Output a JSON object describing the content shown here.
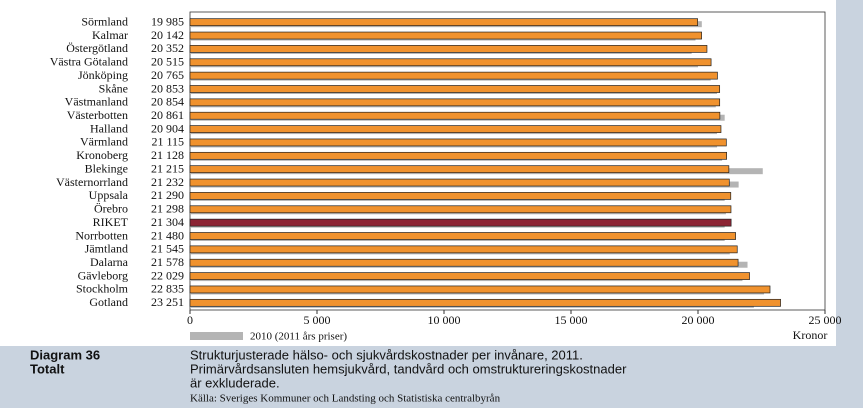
{
  "chart_data": {
    "type": "hbar",
    "categories": [
      "Sörmland",
      "Kalmar",
      "Östergötland",
      "Västra Götaland",
      "Jönköping",
      "Skåne",
      "Västmanland",
      "Västerbotten",
      "Halland",
      "Värmland",
      "Kronoberg",
      "Blekinge",
      "Västernorrland",
      "Uppsala",
      "Örebro",
      "RIKET",
      "Norrbotten",
      "Jämtland",
      "Dalarna",
      "Gävleborg",
      "Stockholm",
      "Gotland"
    ],
    "series": [
      {
        "colors": [
          "#f0922e",
          "#f0922e",
          "#f0922e",
          "#f0922e",
          "#f0922e",
          "#f0922e",
          "#f0922e",
          "#f0922e",
          "#f0922e",
          "#f0922e",
          "#f0922e",
          "#f0922e",
          "#f0922e",
          "#f0922e",
          "#f0922e",
          "#8c2434",
          "#f0922e",
          "#f0922e",
          "#f0922e",
          "#f0922e",
          "#f0922e",
          "#f0922e"
        ],
        "values": [
          19985,
          20142,
          20352,
          20515,
          20765,
          20853,
          20854,
          20861,
          20904,
          21115,
          21128,
          21215,
          21232,
          21290,
          21298,
          21304,
          21480,
          21545,
          21578,
          22029,
          22835,
          23251
        ],
        "value_labels": [
          "19 985",
          "20 142",
          "20 352",
          "20 515",
          "20 765",
          "20 853",
          "20 854",
          "20 861",
          "20 904",
          "21 115",
          "21 128",
          "21 215",
          "21 232",
          "21 290",
          "21 298",
          "21 304",
          "21 480",
          "21 545",
          "21 578",
          "22 029",
          "22 835",
          "23 251"
        ]
      },
      {
        "name": "2010 (2011 års priser)",
        "color": "#b4b4b4",
        "values": [
          20150,
          19900,
          19750,
          20000,
          20500,
          20750,
          20700,
          21050,
          20750,
          20750,
          20950,
          22550,
          21600,
          21050,
          21100,
          21050,
          21050,
          21250,
          21950,
          21750,
          22600,
          22200
        ]
      }
    ],
    "xlabel": "Kronor",
    "xlim": [
      0,
      25000
    ],
    "xticks": [
      0,
      {
        "value": 5000,
        "label": "5 000"
      },
      {
        "value": 10000,
        "label": "10 000"
      },
      {
        "value": 15000,
        "label": "15 000"
      },
      {
        "value": 20000,
        "label": "20 000"
      },
      {
        "value": 25000,
        "label": "25 000"
      }
    ],
    "grid": false
  },
  "caption": {
    "number": "Diagram 36",
    "subtitle": "Totalt",
    "lines": [
      "Strukturjusterade hälso- och sjukvårdskostnader per invånare, 2011.",
      "Primärvårdsansluten hemsjukvård, tandvård och omstruktureringskostnader",
      "är exkluderade."
    ],
    "source": "Källa: Sveriges Kommuner och Landsting och Statistiska centralbyrån"
  }
}
